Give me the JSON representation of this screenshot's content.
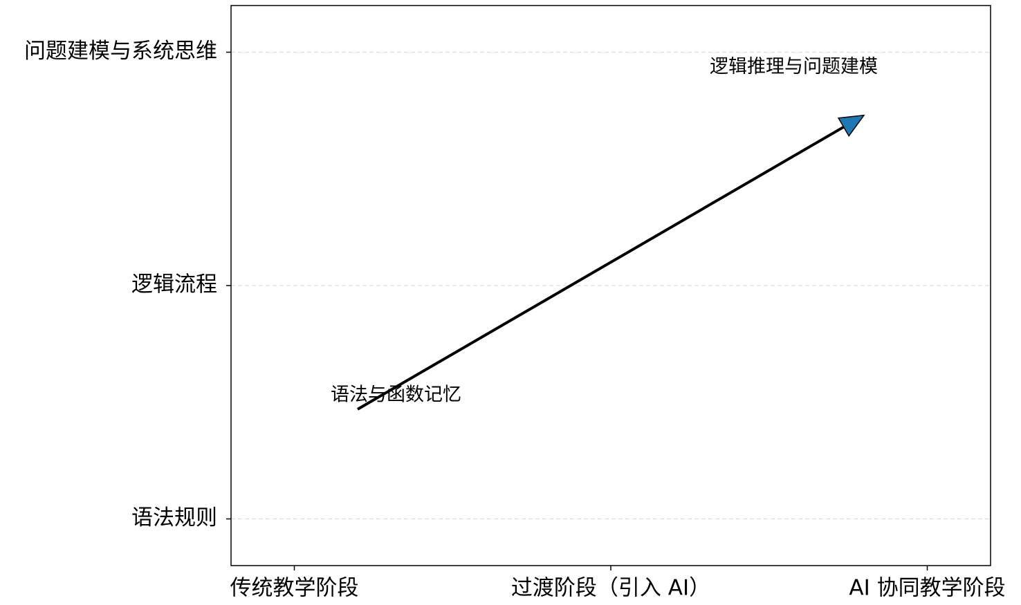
{
  "chart_data": {
    "type": "arrow",
    "xlim": [
      -0.2,
      2.2
    ],
    "ylim": [
      -0.2,
      2.2
    ],
    "xticks": [
      {
        "value": 0,
        "label": "传统教学阶段"
      },
      {
        "value": 1,
        "label": "过渡阶段（引入 AI）"
      },
      {
        "value": 2,
        "label": "AI 协同教学阶段"
      }
    ],
    "yticks": [
      {
        "value": 0,
        "label": "语法规则"
      },
      {
        "value": 1,
        "label": "逻辑流程"
      },
      {
        "value": 2,
        "label": "问题建模与系统思维"
      }
    ],
    "grid": "y",
    "arrow": {
      "start": [
        0.2,
        0.47
      ],
      "end": [
        1.8,
        1.73
      ],
      "color": "#1f77b4"
    },
    "annotations": [
      {
        "text": "语法与函数记忆"
      },
      {
        "text": "逻辑推理与问题建模"
      }
    ]
  }
}
